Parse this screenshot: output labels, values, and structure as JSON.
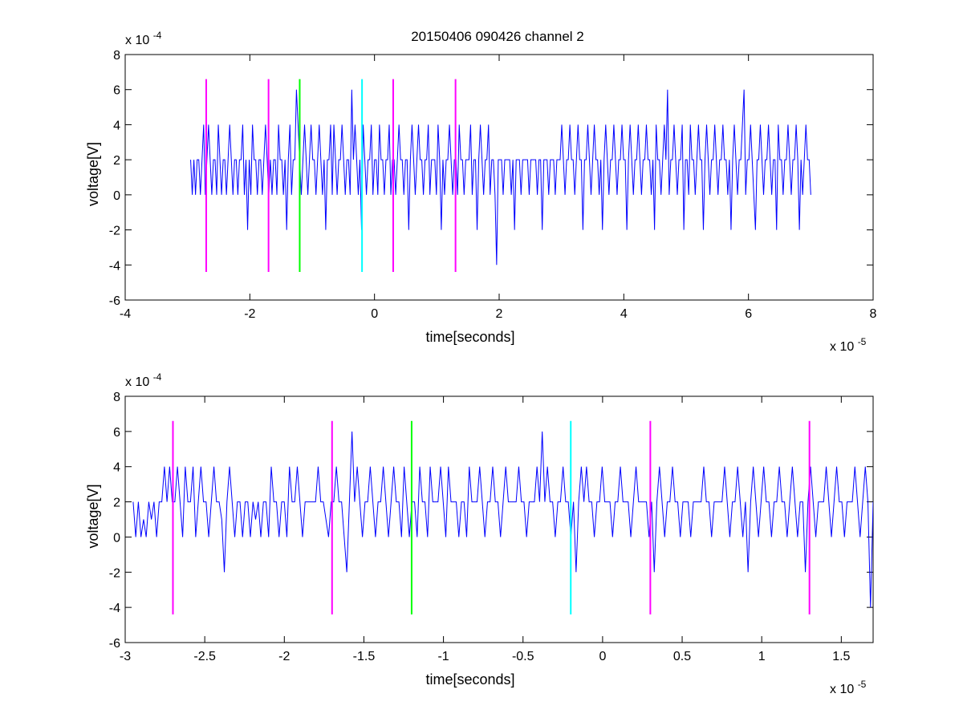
{
  "figure_title": "20150406 090426 channel 2",
  "chart_data": [
    {
      "type": "line",
      "title": "20150406 090426 channel 2",
      "xlabel": "time[seconds]",
      "ylabel": "voltage[V]",
      "x_exponent_label": "x 10",
      "x_exponent": "-5",
      "y_exponent_label": "x 10",
      "y_exponent": "-4",
      "xlim": [
        -4,
        8
      ],
      "ylim": [
        -6,
        8
      ],
      "xticks": [
        -4,
        -2,
        0,
        2,
        4,
        6,
        8
      ],
      "xtick_labels": [
        "-4",
        "-2",
        "0",
        "2",
        "4",
        "6",
        "8"
      ],
      "yticks": [
        -6,
        -4,
        -2,
        0,
        2,
        4,
        6,
        8
      ],
      "ytick_labels": [
        "-6",
        "-4",
        "-2",
        "0",
        "2",
        "4",
        "6",
        "8"
      ],
      "grid": false,
      "series": [
        {
          "color": "#0000ff",
          "x_start": -2.95,
          "x_end": 7.0,
          "values": [
            2,
            0,
            2,
            0,
            2,
            2,
            0,
            2,
            4,
            0,
            2,
            4,
            2,
            0,
            2,
            2,
            0,
            4,
            2,
            0,
            2,
            2,
            0,
            2,
            4,
            2,
            0,
            2,
            2,
            0,
            2,
            2,
            4,
            0,
            2,
            -2,
            2,
            0,
            4,
            2,
            2,
            0,
            2,
            2,
            0,
            2,
            4,
            2,
            0,
            2,
            0,
            2,
            2,
            0,
            4,
            2,
            2,
            0,
            2,
            -2,
            2,
            4,
            0,
            2,
            2,
            6,
            4,
            2,
            0,
            2,
            4,
            2,
            0,
            2,
            4,
            2,
            2,
            0,
            2,
            4,
            2,
            0,
            2,
            -2,
            2,
            2,
            4,
            0,
            4,
            2,
            0,
            2,
            2,
            4,
            2,
            0,
            2,
            2,
            0,
            6,
            2,
            4,
            2,
            0,
            2,
            -2,
            4,
            2,
            0,
            2,
            2,
            4,
            0,
            2,
            2,
            0,
            4,
            2,
            2,
            0,
            2,
            2,
            4,
            0,
            2,
            2,
            0,
            2,
            4,
            2,
            2,
            0,
            2,
            2,
            -2,
            2,
            4,
            2,
            0,
            2,
            4,
            2,
            2,
            0,
            2,
            2,
            4,
            0,
            2,
            2,
            2,
            0,
            4,
            2,
            -2,
            2,
            0,
            2,
            2,
            4,
            2,
            0,
            2,
            2,
            0,
            4,
            2,
            2,
            0,
            2,
            2,
            2,
            4,
            0,
            2,
            2,
            -2,
            2,
            4,
            2,
            0,
            2,
            2,
            4,
            0,
            2,
            2,
            0,
            -4,
            2,
            2,
            2,
            0,
            2,
            2,
            2,
            2,
            0,
            2,
            -2,
            2,
            2,
            2,
            0,
            2,
            2,
            2,
            2,
            0,
            2,
            2,
            2,
            2,
            0,
            2,
            2,
            -2,
            2,
            2,
            2,
            0,
            2,
            2,
            2,
            0,
            2,
            2,
            2,
            4,
            2,
            0,
            2,
            2,
            4,
            2,
            2,
            0,
            2,
            4,
            2,
            2,
            -2,
            2,
            2,
            4,
            2,
            0,
            2,
            4,
            2,
            2,
            0,
            2,
            -2,
            2,
            4,
            2,
            0,
            2,
            2,
            4,
            2,
            0,
            2,
            2,
            4,
            2,
            2,
            -2,
            2,
            4,
            2,
            0,
            2,
            2,
            4,
            2,
            0,
            2,
            2,
            4,
            2,
            2,
            0,
            2,
            -2,
            4,
            2,
            2,
            0,
            2,
            4,
            2,
            6,
            0,
            2,
            2,
            4,
            2,
            0,
            2,
            2,
            4,
            -2,
            2,
            2,
            0,
            4,
            2,
            2,
            0,
            2,
            4,
            2,
            2,
            -2,
            2,
            4,
            2,
            0,
            2,
            2,
            4,
            2,
            0,
            2,
            2,
            4,
            2,
            2,
            0,
            2,
            -2,
            2,
            4,
            2,
            0,
            2,
            2,
            4,
            6,
            0,
            2,
            2,
            4,
            2,
            0,
            -2,
            2,
            2,
            4,
            2,
            0,
            2,
            2,
            4,
            2,
            0,
            2,
            2,
            -2,
            4,
            2,
            2,
            0,
            2,
            2,
            4,
            2,
            0,
            2,
            2,
            4,
            2,
            -2,
            2,
            0,
            2,
            4,
            2,
            2,
            0
          ]
        }
      ],
      "markers": [
        {
          "x": -2.7,
          "color": "#ff00ff"
        },
        {
          "x": -1.7,
          "color": "#ff00ff"
        },
        {
          "x": -1.2,
          "color": "#00ff00"
        },
        {
          "x": -0.2,
          "color": "#00ffff"
        },
        {
          "x": 0.3,
          "color": "#ff00ff"
        },
        {
          "x": 1.3,
          "color": "#ff00ff"
        }
      ],
      "marker_y_range": [
        -4.4,
        6.6
      ]
    },
    {
      "type": "line",
      "title": "",
      "xlabel": "time[seconds]",
      "ylabel": "voltage[V]",
      "x_exponent_label": "x 10",
      "x_exponent": "-5",
      "y_exponent_label": "x 10",
      "y_exponent": "-4",
      "xlim": [
        -3.0,
        1.7
      ],
      "ylim": [
        -6,
        8
      ],
      "xticks": [
        -3,
        -2.5,
        -2,
        -1.5,
        -1,
        -0.5,
        0,
        0.5,
        1,
        1.5
      ],
      "xtick_labels": [
        "-3",
        "-2.5",
        "-2",
        "-1.5",
        "-1",
        "-0.5",
        "0",
        "0.5",
        "1",
        "1.5"
      ],
      "yticks": [
        -6,
        -4,
        -2,
        0,
        2,
        4,
        6,
        8
      ],
      "ytick_labels": [
        "-6",
        "-4",
        "-2",
        "0",
        "2",
        "4",
        "6",
        "8"
      ],
      "grid": false,
      "series": [
        {
          "color": "#0000ff",
          "x_start": -2.95,
          "x_end": 1.7,
          "values": [
            2,
            0,
            2,
            0,
            1,
            0,
            2,
            1,
            2,
            0,
            2,
            2,
            4,
            2,
            4,
            2,
            2,
            4,
            2,
            0,
            4,
            2,
            2,
            4,
            0,
            2,
            4,
            2,
            2,
            0,
            2,
            4,
            2,
            2,
            1,
            -2,
            2,
            4,
            2,
            0,
            2,
            2,
            0,
            2,
            2,
            0,
            2,
            1,
            2,
            0,
            2,
            2,
            0,
            4,
            2,
            2,
            0,
            2,
            2,
            0,
            4,
            2,
            2,
            4,
            2,
            0,
            2,
            2,
            2,
            2,
            2,
            4,
            2,
            2,
            1,
            0,
            2,
            2,
            4,
            2,
            2,
            0,
            -2,
            2,
            6,
            2,
            4,
            2,
            0,
            2,
            2,
            4,
            2,
            0,
            2,
            2,
            4,
            2,
            0,
            2,
            4,
            2,
            2,
            0,
            4,
            2,
            0,
            2,
            2,
            0,
            4,
            2,
            2,
            0,
            4,
            2,
            2,
            2,
            4,
            2,
            0,
            4,
            2,
            2,
            2,
            0,
            2,
            2,
            0,
            4,
            2,
            2,
            2,
            4,
            2,
            0,
            2,
            2,
            4,
            2,
            2,
            0,
            2,
            4,
            2,
            2,
            2,
            2,
            4,
            2,
            2,
            0,
            2,
            2,
            2,
            4,
            2,
            6,
            2,
            4,
            2,
            2,
            0,
            2,
            2,
            4,
            2,
            2,
            0,
            2,
            -2,
            2,
            4,
            2,
            4,
            2,
            2,
            0,
            2,
            2,
            4,
            2,
            2,
            2,
            0,
            2,
            2,
            4,
            2,
            2,
            2,
            0,
            2,
            4,
            2,
            2,
            2,
            2,
            0,
            2,
            -2,
            2,
            4,
            2,
            0,
            2,
            2,
            4,
            2,
            2,
            0,
            2,
            2,
            2,
            0,
            2,
            2,
            2,
            2,
            4,
            2,
            2,
            0,
            2,
            2,
            2,
            2,
            4,
            2,
            0,
            2,
            2,
            4,
            2,
            0,
            2,
            -2,
            2,
            4,
            2,
            0,
            2,
            4,
            2,
            2,
            0,
            2,
            2,
            4,
            2,
            2,
            0,
            2,
            4,
            2,
            0,
            2,
            2,
            -2,
            2,
            4,
            2,
            0,
            2,
            2,
            2,
            4,
            2,
            0,
            2,
            4,
            2,
            2,
            0,
            2,
            2,
            2,
            4,
            2,
            0,
            2,
            4,
            2,
            -4,
            2
          ]
        }
      ],
      "markers": [
        {
          "x": -2.7,
          "color": "#ff00ff"
        },
        {
          "x": -1.7,
          "color": "#ff00ff"
        },
        {
          "x": -1.2,
          "color": "#00ff00"
        },
        {
          "x": -0.2,
          "color": "#00ffff"
        },
        {
          "x": 0.3,
          "color": "#ff00ff"
        },
        {
          "x": 1.3,
          "color": "#ff00ff"
        }
      ],
      "marker_y_range": [
        -4.4,
        6.6
      ]
    }
  ]
}
